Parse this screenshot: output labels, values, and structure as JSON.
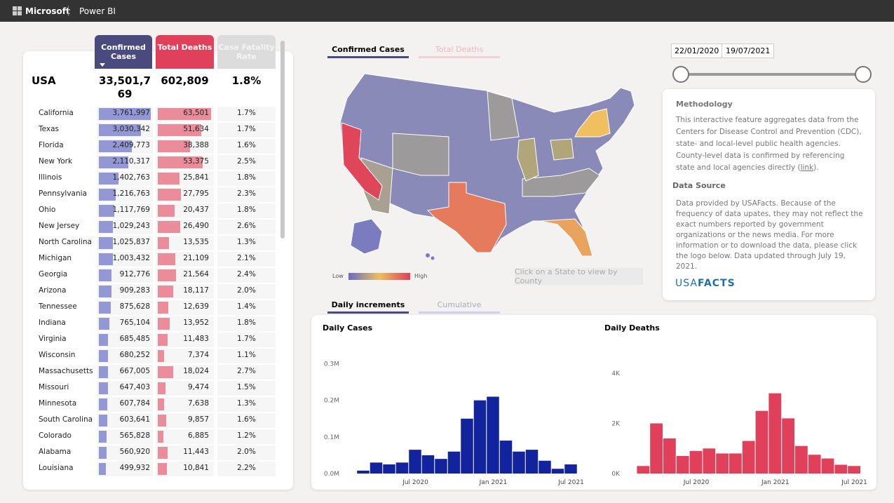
{
  "header": {
    "brand": "Microsoft",
    "app": "Power BI"
  },
  "table": {
    "columns": [
      "Confirmed Cases",
      "Total Deaths",
      "Case Fatality Rate"
    ],
    "total": {
      "name": "USA",
      "cases": "33,501,769",
      "deaths": "602,809",
      "rate": "1.8%"
    },
    "rows": [
      {
        "state": "California",
        "cases": 3761997,
        "cases_label": "3,761,997",
        "deaths": 63501,
        "deaths_label": "63,501",
        "rate": "1.7%"
      },
      {
        "state": "Texas",
        "cases": 3030342,
        "cases_label": "3,030,342",
        "deaths": 51634,
        "deaths_label": "51,634",
        "rate": "1.7%"
      },
      {
        "state": "Florida",
        "cases": 2409773,
        "cases_label": "2,409,773",
        "deaths": 38388,
        "deaths_label": "38,388",
        "rate": "1.6%"
      },
      {
        "state": "New York",
        "cases": 2110317,
        "cases_label": "2,110,317",
        "deaths": 53375,
        "deaths_label": "53,375",
        "rate": "2.5%"
      },
      {
        "state": "Illinois",
        "cases": 1402763,
        "cases_label": "1,402,763",
        "deaths": 25841,
        "deaths_label": "25,841",
        "rate": "1.8%"
      },
      {
        "state": "Pennsylvania",
        "cases": 1216763,
        "cases_label": "1,216,763",
        "deaths": 27795,
        "deaths_label": "27,795",
        "rate": "2.3%"
      },
      {
        "state": "Ohio",
        "cases": 1117769,
        "cases_label": "1,117,769",
        "deaths": 20437,
        "deaths_label": "20,437",
        "rate": "1.8%"
      },
      {
        "state": "New Jersey",
        "cases": 1029243,
        "cases_label": "1,029,243",
        "deaths": 26490,
        "deaths_label": "26,490",
        "rate": "2.6%"
      },
      {
        "state": "North Carolina",
        "cases": 1025837,
        "cases_label": "1,025,837",
        "deaths": 13535,
        "deaths_label": "13,535",
        "rate": "1.3%"
      },
      {
        "state": "Michigan",
        "cases": 1003432,
        "cases_label": "1,003,432",
        "deaths": 21109,
        "deaths_label": "21,109",
        "rate": "2.1%"
      },
      {
        "state": "Georgia",
        "cases": 912776,
        "cases_label": "912,776",
        "deaths": 21564,
        "deaths_label": "21,564",
        "rate": "2.4%"
      },
      {
        "state": "Arizona",
        "cases": 909283,
        "cases_label": "909,283",
        "deaths": 18117,
        "deaths_label": "18,117",
        "rate": "2.0%"
      },
      {
        "state": "Tennessee",
        "cases": 875628,
        "cases_label": "875,628",
        "deaths": 12639,
        "deaths_label": "12,639",
        "rate": "1.4%"
      },
      {
        "state": "Indiana",
        "cases": 765104,
        "cases_label": "765,104",
        "deaths": 13952,
        "deaths_label": "13,952",
        "rate": "1.8%"
      },
      {
        "state": "Virginia",
        "cases": 685485,
        "cases_label": "685,485",
        "deaths": 11483,
        "deaths_label": "11,483",
        "rate": "1.7%"
      },
      {
        "state": "Wisconsin",
        "cases": 680252,
        "cases_label": "680,252",
        "deaths": 7374,
        "deaths_label": "7,374",
        "rate": "1.1%"
      },
      {
        "state": "Massachusetts",
        "cases": 667005,
        "cases_label": "667,005",
        "deaths": 18024,
        "deaths_label": "18,024",
        "rate": "2.7%"
      },
      {
        "state": "Missouri",
        "cases": 647403,
        "cases_label": "647,403",
        "deaths": 9474,
        "deaths_label": "9,474",
        "rate": "1.5%"
      },
      {
        "state": "Minnesota",
        "cases": 607784,
        "cases_label": "607,784",
        "deaths": 7638,
        "deaths_label": "7,638",
        "rate": "1.3%"
      },
      {
        "state": "South Carolina",
        "cases": 603641,
        "cases_label": "603,641",
        "deaths": 9857,
        "deaths_label": "9,857",
        "rate": "1.6%"
      },
      {
        "state": "Colorado",
        "cases": 565828,
        "cases_label": "565,828",
        "deaths": 6885,
        "deaths_label": "6,885",
        "rate": "1.2%"
      },
      {
        "state": "Alabama",
        "cases": 560920,
        "cases_label": "560,920",
        "deaths": 11443,
        "deaths_label": "11,443",
        "rate": "2.0%"
      },
      {
        "state": "Louisiana",
        "cases": 499932,
        "cases_label": "499,932",
        "deaths": 10841,
        "deaths_label": "10,841",
        "rate": "2.2%"
      }
    ]
  },
  "map": {
    "tabs": [
      "Confirmed Cases",
      "Total Deaths"
    ],
    "legend": {
      "low": "Low",
      "high": "High"
    },
    "hint": "Click on a State to view by County"
  },
  "dates": {
    "start": "22/01/2020",
    "end": "19/07/2021"
  },
  "methodology": {
    "title": "Methodology",
    "text": "This interactive feature aggregates data from the Centers for Disease Control and Prevention (CDC), state- and local-level public health agencies. County-level data is confirmed by referencing state and local agencies directly (",
    "link": "link",
    "text_after": ")."
  },
  "data_source": {
    "title": "Data Source",
    "text": "Data provided by USAFacts. Because of the frequency of data upates, they may not reflect the exact numbers reported by government organizations or the news media. For more information or to download the data, please click the logo below. Data updated through July 19, 2021."
  },
  "logo": {
    "first": "USA",
    "second": "FACTS"
  },
  "chart_tabs": [
    "Daily increments",
    "Cumulative"
  ],
  "chart_data": [
    {
      "type": "bar",
      "title": "Daily Cases",
      "color": "#12239e",
      "x": [
        "2020-02",
        "2020-03",
        "2020-04",
        "2020-05",
        "2020-06",
        "2020-07",
        "2020-08",
        "2020-09",
        "2020-10",
        "2020-11",
        "2020-12",
        "2021-01",
        "2021-02",
        "2021-03",
        "2021-04",
        "2021-05",
        "2021-06",
        "2021-07"
      ],
      "values": [
        0,
        8000,
        30000,
        25000,
        30000,
        65000,
        50000,
        40000,
        60000,
        150000,
        200000,
        210000,
        90000,
        60000,
        65000,
        35000,
        13000,
        25000
      ],
      "ylim": [
        0,
        370000
      ],
      "yticks": [
        {
          "value": 0,
          "label": "0.0M"
        },
        {
          "value": 100000,
          "label": "0.1M"
        },
        {
          "value": 200000,
          "label": "0.2M"
        },
        {
          "value": 300000,
          "label": "0.3M"
        }
      ],
      "xticks": [
        {
          "value": "2020-07",
          "label": "Jul 2020"
        },
        {
          "value": "2021-01",
          "label": "Jan 2021"
        },
        {
          "value": "2021-07",
          "label": "Jul 2021"
        }
      ]
    },
    {
      "type": "bar",
      "title": "Daily Deaths",
      "color": "#e0405a",
      "x": [
        "2020-02",
        "2020-03",
        "2020-04",
        "2020-05",
        "2020-06",
        "2020-07",
        "2020-08",
        "2020-09",
        "2020-10",
        "2020-11",
        "2020-12",
        "2021-01",
        "2021-02",
        "2021-03",
        "2021-04",
        "2021-05",
        "2021-06",
        "2021-07"
      ],
      "values": [
        0,
        300,
        2000,
        1400,
        700,
        900,
        1000,
        800,
        800,
        1300,
        2500,
        3200,
        2200,
        1100,
        750,
        600,
        350,
        300
      ],
      "ylim": [
        0,
        5400
      ],
      "yticks": [
        {
          "value": 0,
          "label": "0K"
        },
        {
          "value": 2000,
          "label": "2K"
        },
        {
          "value": 4000,
          "label": "4K"
        }
      ],
      "xticks": [
        {
          "value": "2020-07",
          "label": "Jul 2020"
        },
        {
          "value": "2021-01",
          "label": "Jan 2021"
        },
        {
          "value": "2021-07",
          "label": "Jul 2021"
        }
      ]
    }
  ]
}
